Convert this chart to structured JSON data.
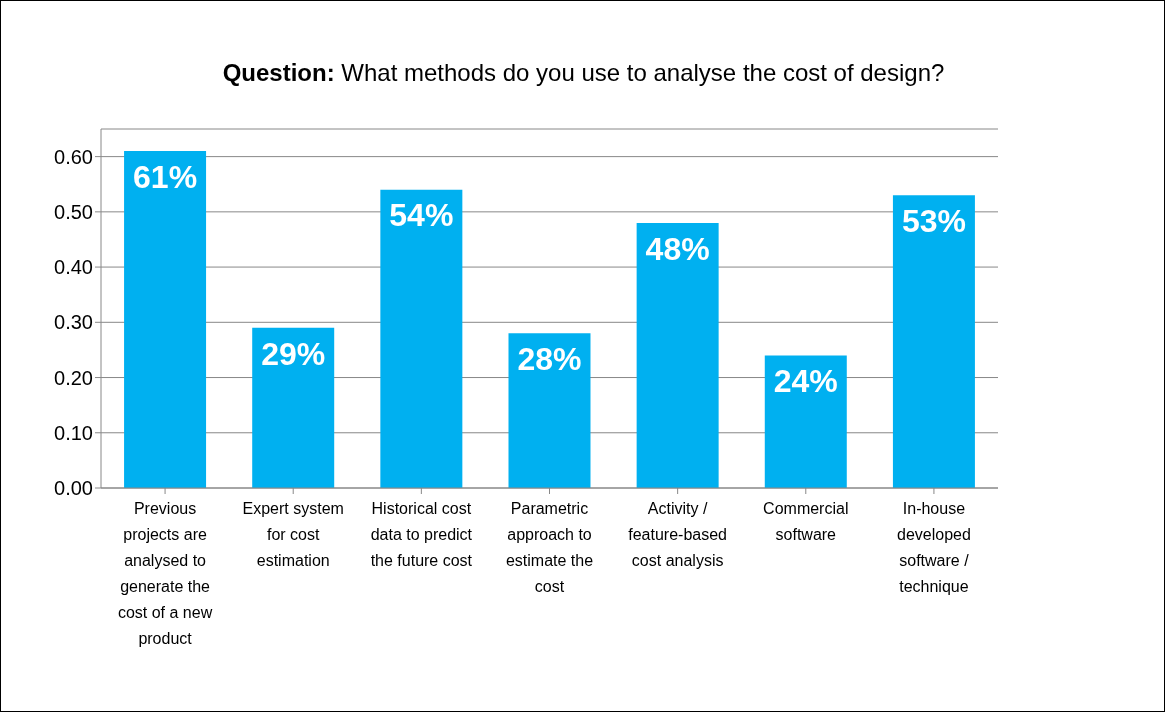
{
  "chart_data": {
    "type": "bar",
    "title": "Question: What methods do you use to analyse the cost of design?",
    "categories": [
      "Previous projects are analysed to generate the cost of a new product",
      "Expert system for cost estimation",
      "Historical cost data to predict the future cost",
      "Parametric approach to estimate the cost",
      "Activity / feature-based cost analysis",
      "Commercial software",
      "In-house developed software / technique"
    ],
    "values": [
      0.61,
      0.29,
      0.54,
      0.28,
      0.48,
      0.24,
      0.53
    ],
    "value_labels": [
      "61%",
      "29%",
      "54%",
      "28%",
      "48%",
      "24%",
      "53%"
    ],
    "color": "#00b0f0",
    "ylim": [
      0,
      0.65
    ],
    "yticks": [
      {
        "value": 0,
        "label": "0.00"
      },
      {
        "value": 0.1,
        "label": "0.10"
      },
      {
        "value": 0.2,
        "label": "0.20"
      },
      {
        "value": 0.3,
        "label": "0.30"
      },
      {
        "value": 0.4,
        "label": "0.40"
      },
      {
        "value": 0.5,
        "label": "0.50"
      },
      {
        "value": 0.6,
        "label": "0.60"
      }
    ],
    "grid": "y"
  }
}
